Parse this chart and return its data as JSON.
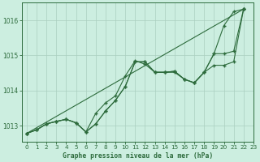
{
  "title": "Graphe pression niveau de la mer (hPa)",
  "background_color": "#cceee0",
  "grid_color": "#aacfbf",
  "line_color": "#2d6b3c",
  "xlim": [
    -0.5,
    23
  ],
  "ylim": [
    1012.55,
    1016.5
  ],
  "yticks": [
    1013,
    1014,
    1015,
    1016
  ],
  "xticks": [
    0,
    1,
    2,
    3,
    4,
    5,
    6,
    7,
    8,
    9,
    10,
    11,
    12,
    13,
    14,
    15,
    16,
    17,
    18,
    19,
    20,
    21,
    22,
    23
  ],
  "series": [
    {
      "x": [
        0,
        1,
        2,
        3,
        4,
        5,
        6,
        7,
        8,
        9,
        10,
        11,
        12,
        13,
        14,
        15,
        16,
        17,
        18,
        19,
        20,
        21,
        22
      ],
      "y": [
        1012.78,
        1012.88,
        1013.05,
        1013.12,
        1013.18,
        1013.08,
        1012.82,
        1013.05,
        1013.42,
        1013.72,
        1014.12,
        1014.82,
        1014.82,
        1014.52,
        1014.52,
        1014.52,
        1014.32,
        1014.22,
        1014.52,
        1014.72,
        1014.72,
        1014.82,
        1016.32
      ]
    },
    {
      "x": [
        0,
        1,
        2,
        3,
        4,
        5,
        6,
        7,
        8,
        9,
        10,
        11,
        12,
        13,
        14,
        15,
        16,
        17,
        18,
        19,
        20,
        21,
        22
      ],
      "y": [
        1012.78,
        1012.88,
        1013.05,
        1013.12,
        1013.18,
        1013.08,
        1012.82,
        1013.35,
        1013.65,
        1013.85,
        1014.42,
        1014.85,
        1014.75,
        1014.52,
        1014.52,
        1014.55,
        1014.32,
        1014.22,
        1014.52,
        1015.05,
        1015.05,
        1015.12,
        1016.32
      ]
    },
    {
      "x": [
        0,
        1,
        2,
        3,
        4,
        5,
        6,
        7,
        8,
        9,
        10,
        11,
        12,
        13,
        14,
        15,
        16,
        17,
        18,
        19,
        20,
        21,
        22
      ],
      "y": [
        1012.78,
        1012.88,
        1013.05,
        1013.12,
        1013.18,
        1013.08,
        1012.82,
        1013.05,
        1013.42,
        1013.72,
        1014.12,
        1014.82,
        1014.82,
        1014.52,
        1014.52,
        1014.55,
        1014.32,
        1014.22,
        1014.52,
        1015.05,
        1015.85,
        1016.25,
        1016.32
      ]
    },
    {
      "x": [
        0,
        22
      ],
      "y": [
        1012.78,
        1016.32
      ]
    }
  ]
}
